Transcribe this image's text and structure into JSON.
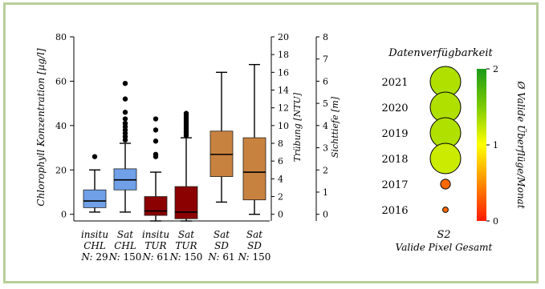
{
  "chart_data": [
    {
      "type": "boxplot",
      "ylabel": "Chlorophyll Konzentration [µg/l]",
      "ylim": [
        -3,
        80
      ],
      "yticks": [
        0,
        20,
        40,
        60,
        80
      ],
      "secondary_axes": [
        {
          "label": "Trübung [NTU]",
          "ylim": [
            -0.75,
            20
          ],
          "ticks": [
            0,
            2,
            4,
            6,
            8,
            10,
            12,
            14,
            16,
            18,
            20
          ]
        },
        {
          "label": "Sichttiefe [m]",
          "ylim": [
            -0.3,
            8
          ],
          "ticks": [
            0,
            1,
            2,
            3,
            4,
            5,
            6,
            7,
            8
          ]
        }
      ],
      "boxes": [
        {
          "line1": "insitu",
          "line2": "CHL",
          "n_label": "N:",
          "n": "29",
          "color": "#6fa0e8",
          "whisker_low": 1,
          "q1": 3,
          "median": 6,
          "q3": 11,
          "whisker_high": 20,
          "outliers": [
            26
          ]
        },
        {
          "line1": "Sat",
          "line2": "CHL",
          "n_label": "N:",
          "n": "150",
          "color": "#6fa0e8",
          "whisker_low": 1,
          "q1": 11,
          "median": 15.5,
          "q3": 20.5,
          "whisker_high": 32,
          "outliers": [
            33.5,
            35,
            36.5,
            38,
            39.5,
            41,
            43,
            46,
            52,
            59
          ]
        },
        {
          "line1": "insitu",
          "line2": "TUR",
          "n_label": "N:",
          "n": "61",
          "color": "#8b0000",
          "whisker_low": -3,
          "q1": -0.5,
          "median": 1.5,
          "q3": 8,
          "whisker_high": 19,
          "outliers": [
            26,
            27,
            33,
            38,
            43
          ]
        },
        {
          "line1": "Sat",
          "line2": "TUR",
          "n_label": "N:",
          "n": "150",
          "color": "#8b0000",
          "whisker_low": -3,
          "q1": -2,
          "median": 1,
          "q3": 12.5,
          "whisker_high": 34.5,
          "outliers": [
            35.5,
            36.5,
            37.5,
            38.5,
            39.5,
            40.5,
            41.5,
            42.5,
            43.5,
            44.5,
            45.5
          ]
        },
        {
          "line1": "Sat",
          "line2": "SD",
          "n_label": "N:",
          "n": "61",
          "color": "#c8823f",
          "whisker_low": 5.5,
          "q1": 17,
          "median": 27,
          "q3": 37.5,
          "whisker_high": 64,
          "outliers": []
        },
        {
          "line1": "Sat",
          "line2": "SD",
          "n_label": "N:",
          "n": "150",
          "color": "#c8823f",
          "whisker_low": 0,
          "q1": 6.5,
          "median": 19,
          "q3": 34.5,
          "whisker_high": 67.5,
          "outliers": []
        }
      ]
    },
    {
      "type": "bubble",
      "title": "Datenverfügbarkeit",
      "x_category": "S2",
      "x_label": "Valide Pixel Gesamt",
      "years": [
        "2021",
        "2020",
        "2019",
        "2018",
        "2017",
        "2016"
      ],
      "sizes": [
        1.0,
        1.0,
        1.0,
        1.0,
        0.32,
        0.18
      ],
      "values": [
        1.3,
        1.3,
        1.3,
        1.2,
        0.35,
        0.35
      ],
      "colorbar": {
        "label": "Ø Valide Überflüge/Monat",
        "ticks": [
          "0",
          "1",
          "2"
        ],
        "range": [
          0,
          2
        ]
      }
    }
  ]
}
